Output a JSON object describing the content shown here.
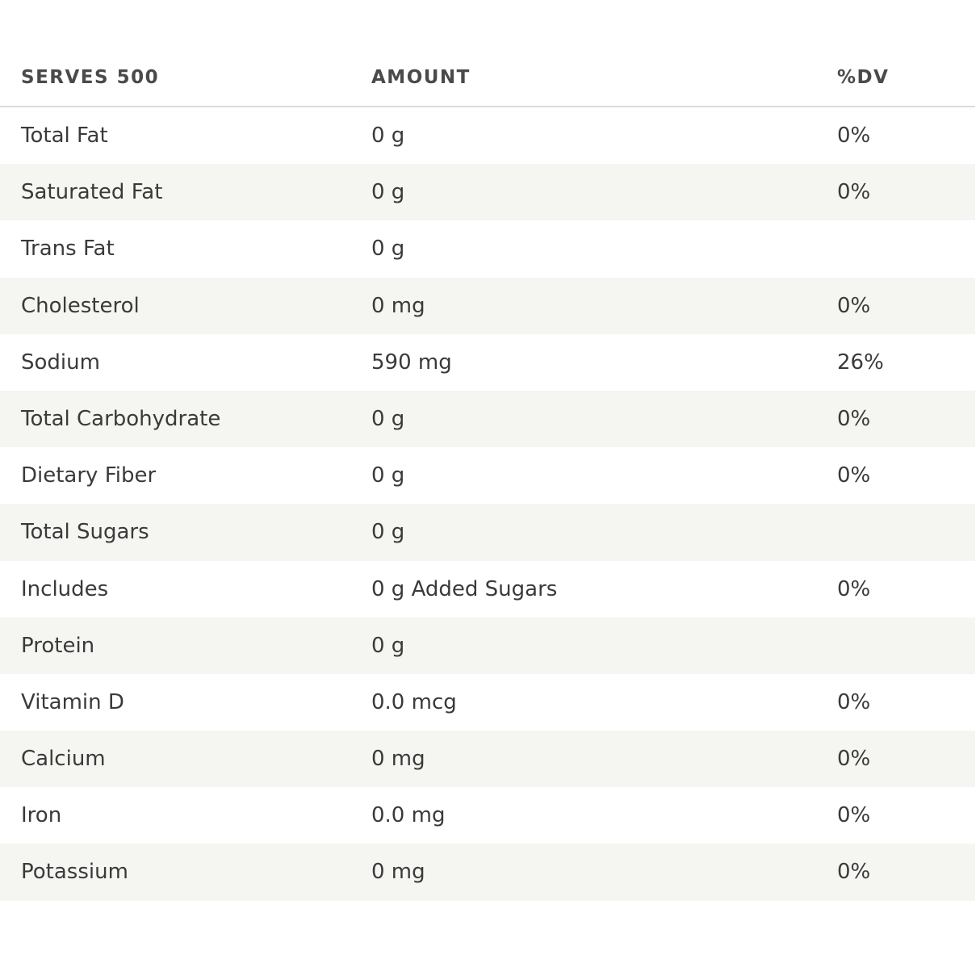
{
  "header": {
    "col1": "SERVES 500",
    "col2": "AMOUNT",
    "col3": "%DV"
  },
  "rows": [
    {
      "nutrient": "Total Fat",
      "amount": "0 g",
      "dv": "0%"
    },
    {
      "nutrient": "Saturated Fat",
      "amount": "0 g",
      "dv": "0%"
    },
    {
      "nutrient": "Trans Fat",
      "amount": "0 g",
      "dv": ""
    },
    {
      "nutrient": "Cholesterol",
      "amount": "0 mg",
      "dv": "0%"
    },
    {
      "nutrient": "Sodium",
      "amount": "590 mg",
      "dv": "26%"
    },
    {
      "nutrient": "Total Carbohydrate",
      "amount": "0 g",
      "dv": "0%"
    },
    {
      "nutrient": "Dietary Fiber",
      "amount": "0 g",
      "dv": "0%"
    },
    {
      "nutrient": "Total Sugars",
      "amount": "0 g",
      "dv": ""
    },
    {
      "nutrient": "Includes",
      "amount": "0 g Added Sugars",
      "dv": "0%"
    },
    {
      "nutrient": "Protein",
      "amount": "0 g",
      "dv": ""
    },
    {
      "nutrient": "Vitamin D",
      "amount": "0.0 mcg",
      "dv": "0%"
    },
    {
      "nutrient": "Calcium",
      "amount": "0 mg",
      "dv": "0%"
    },
    {
      "nutrient": "Iron",
      "amount": "0.0 mg",
      "dv": "0%"
    },
    {
      "nutrient": "Potassium",
      "amount": "0 mg",
      "dv": "0%"
    }
  ]
}
